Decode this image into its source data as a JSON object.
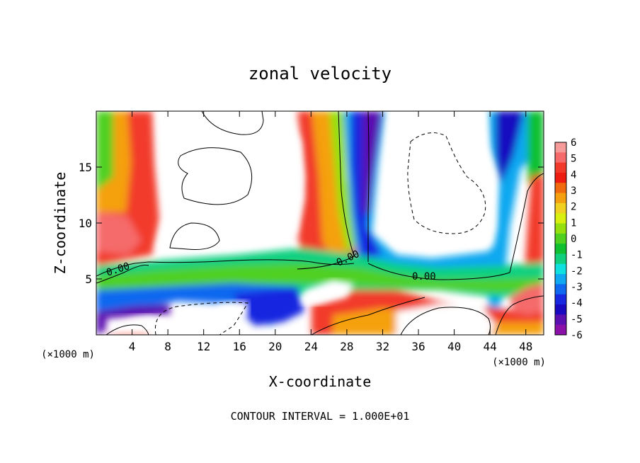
{
  "chart_data": {
    "type": "heatmap",
    "title": "zonal velocity",
    "xlabel": "X-coordinate",
    "ylabel": "Z-coordinate",
    "x_unit": "(×1000 m)",
    "z_unit": "(×1000 m)",
    "xlim": [
      0,
      50
    ],
    "ylim": [
      0,
      20
    ],
    "x_ticks": [
      4,
      8,
      12,
      16,
      20,
      24,
      28,
      32,
      36,
      40,
      44,
      48
    ],
    "y_ticks": [
      5,
      10,
      15
    ],
    "footer": "CONTOUR INTERVAL = 1.000E+01",
    "contour_labels": [
      "0.00",
      "0.00",
      "0.00"
    ],
    "colorbar": {
      "ticks": [
        "6",
        "5",
        "4",
        "3",
        "2",
        "1",
        "0",
        "-1",
        "-2",
        "-3",
        "-4",
        "-5",
        "-6"
      ],
      "colors": [
        "#f79a9a",
        "#f56b6b",
        "#f23a2a",
        "#ee1d12",
        "#f26a10",
        "#f5a010",
        "#f0d020",
        "#d8ef10",
        "#96e010",
        "#50d020",
        "#10c030",
        "#10d080",
        "#10e0e0",
        "#10a8f0",
        "#1068f0",
        "#1828e0",
        "#1808c0",
        "#5a10b0",
        "#8a10a8"
      ]
    }
  }
}
